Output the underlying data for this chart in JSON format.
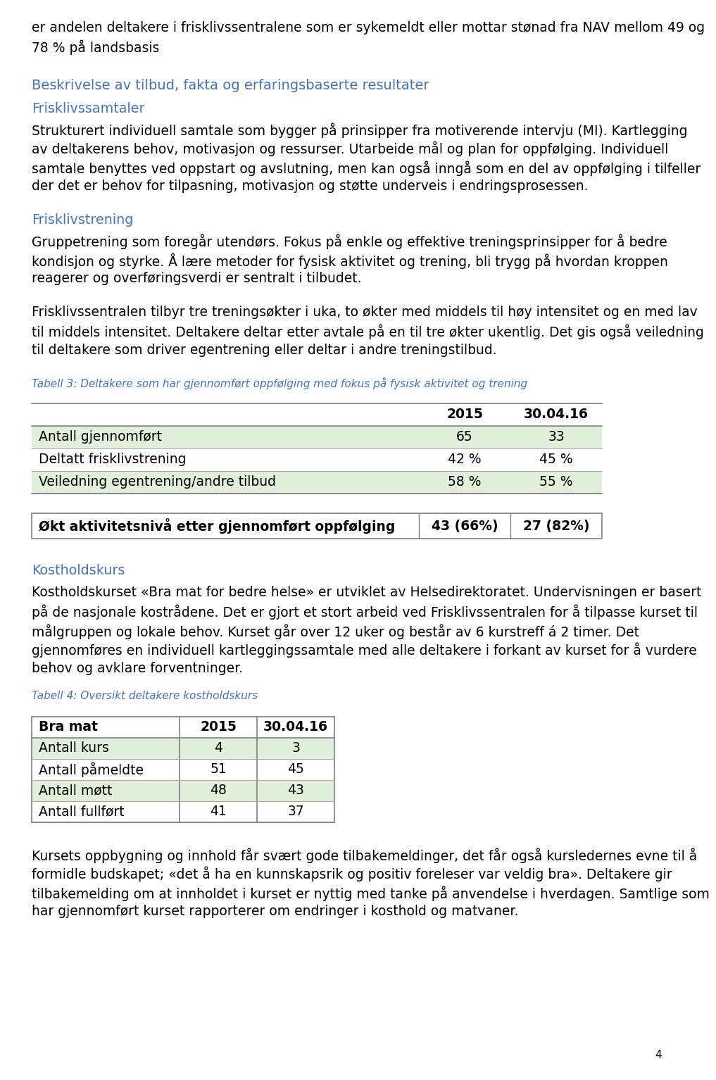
{
  "bg_color": "#ffffff",
  "text_color": "#000000",
  "blue_color": "#4472C4",
  "green_row_bg": "#E2EFDA",
  "table_border_color": "#7F7F7F",
  "table_line_color": "#AAAAAA",
  "top_text_line1": "er andelen deltakere i frisklivssentralene som er sykemeldt eller mottar stønad fra NAV mellom 49 og",
  "top_text_line2": "78 % på landsbasis",
  "section_heading": "Beskrivelse av tilbud, fakta og erfaringsbaserte resultater",
  "subsection1": "Frisklivssamtaler",
  "para1_lines": [
    "Strukturert individuell samtale som bygger på prinsipper fra motiverende intervju (MI). Kartlegging",
    "av deltakerens behov, motivasjon og ressurser. Utarbeide mål og plan for oppfølging. Individuell",
    "samtale benyttes ved oppstart og avslutning, men kan også inngå som en del av oppfølging i tilfeller",
    "der det er behov for tilpasning, motivasjon og støtte underveis i endringsprosessen."
  ],
  "subsection2": "Frisklivstrening",
  "para2_lines": [
    "Gruppetrening som foregår utendørs. Fokus på enkle og effektive treningsprinsipper for å bedre",
    "kondisjon og styrke. Å lære metoder for fysisk aktivitet og trening, bli trygg på hvordan kroppen",
    "reagerer og overføringsverdi er sentralt i tilbudet."
  ],
  "para3_lines": [
    "Frisklivssentralen tilbyr tre treningsøkter i uka, to økter med middels til høy intensitet og en med lav",
    "til middels intensitet. Deltakere deltar etter avtale på en til tre økter ukentlig. Det gis også veiledning",
    "til deltakere som driver egentrening eller deltar i andre treningstilbud."
  ],
  "table3_caption": "Tabell 3: Deltakere som har gjennomført oppfølging med fokus på fysisk aktivitet og trening",
  "table3_headers": [
    "",
    "2015",
    "30.04.16"
  ],
  "table3_rows": [
    [
      "Antall gjennomført",
      "65",
      "33"
    ],
    [
      "Deltatt frisklivstrening",
      "42 %",
      "45 %"
    ],
    [
      "Veiledning egentrening/andre tilbud",
      "58 %",
      "55 %"
    ]
  ],
  "bold_row_label": "Økt aktivitetsnivå etter gjennomført oppfølging",
  "bold_row_val1": "43 (66%)",
  "bold_row_val2": "27 (82%)",
  "subsection3": "Kostholdskurs",
  "para4_lines": [
    "Kostholdskurset «Bra mat for bedre helse» er utviklet av Helsedirektoratet. Undervisningen er basert",
    "på de nasjonale kostrådene. Det er gjort et stort arbeid ved Frisklivssentralen for å tilpasse kurset til",
    "målgruppen og lokale behov. Kurset går over 12 uker og består av 6 kurstreff á 2 timer. Det",
    "gjennomføres en individuell kartleggingssamtale med alle deltakere i forkant av kurset for å vurdere",
    "behov og avklare forventninger."
  ],
  "table4_caption": "Tabell 4: Oversikt deltakere kostholdskurs",
  "table4_headers": [
    "Bra mat",
    "2015",
    "30.04.16"
  ],
  "table4_rows": [
    [
      "Antall kurs",
      "4",
      "3"
    ],
    [
      "Antall påmeldte",
      "51",
      "45"
    ],
    [
      "Antall møtt",
      "48",
      "43"
    ],
    [
      "Antall fullført",
      "41",
      "37"
    ]
  ],
  "para5_lines": [
    "Kursets oppbygning og innhold får svært gode tilbakemeldinger, det får også kursledernes evne til å",
    "formidle budskapet; «det å ha en kunnskapsrik og positiv foreleser var veldig bra». Deltakere gir",
    "tilbakemelding om at innholdet i kurset er nyttig med tanke på anvendelse i hverdagen. Samtlige som",
    "har gjennomført kurset rapporterer om endringer i kosthold og matvaner."
  ],
  "page_number": "4"
}
